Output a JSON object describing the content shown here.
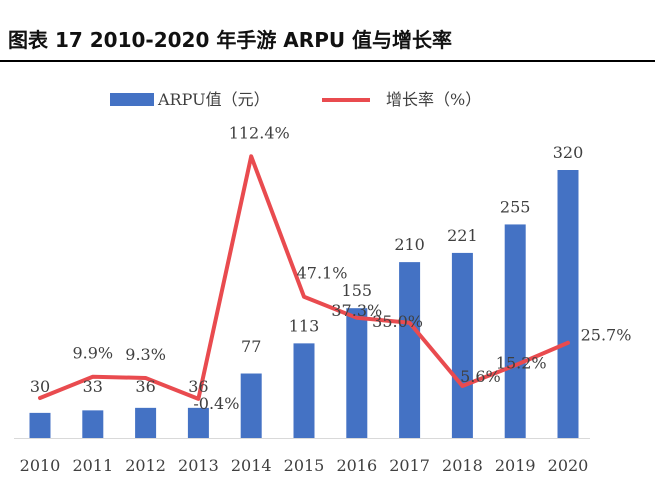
{
  "title": "图表 17 2010-2020 年手游 ARPU 值与增长率",
  "colors": {
    "bar": "#4472c4",
    "line": "#e94b4f",
    "axis": "#d9d9d9",
    "text": "#404040"
  },
  "chart_data": {
    "type": "bar",
    "categories": [
      "2010",
      "2011",
      "2012",
      "2013",
      "2014",
      "2015",
      "2016",
      "2017",
      "2018",
      "2019",
      "2020"
    ],
    "series": [
      {
        "name": "ARPU值（元）",
        "type": "bar",
        "values": [
          30,
          33,
          36,
          36,
          77,
          113,
          155,
          210,
          221,
          255,
          320
        ],
        "labels": [
          "30",
          "33",
          "36",
          "36",
          "77",
          "113",
          "155",
          "210",
          "221",
          "255",
          "320"
        ]
      },
      {
        "name": "增长率（%）",
        "type": "line",
        "values": [
          null,
          9.9,
          9.3,
          -0.4,
          112.4,
          47.1,
          37.3,
          35.0,
          5.6,
          15.2,
          25.7
        ],
        "labels": [
          "",
          "9.9%",
          "9.3%",
          "-0.4%",
          "112.4%",
          "47.1%",
          "37.3%",
          "35.0%",
          "5.6%",
          "15.2%",
          "25.7%"
        ]
      }
    ],
    "legend_position": "top"
  }
}
